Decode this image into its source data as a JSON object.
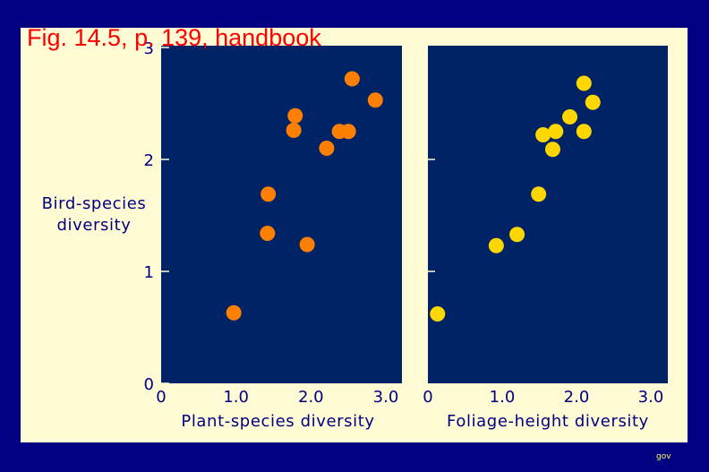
{
  "figure": {
    "title": "Fig. 14.5, p. 139, handbook",
    "footer": "gov",
    "ylabel_lines": [
      "Bird-species",
      "diversity"
    ]
  },
  "colors": {
    "frame": "#000080",
    "panel": "#fffbd5",
    "plot_bg": "#002366",
    "title": "#ff0000",
    "text": "#000080",
    "series_left": "#ff8000",
    "series_right": "#ffd700"
  },
  "chart_data": [
    {
      "type": "scatter",
      "title": "",
      "xlabel": "Plant-species diversity",
      "ylabel": "Bird-species diversity",
      "xlim": [
        0,
        3.2
      ],
      "ylim": [
        0,
        3
      ],
      "xticks": [
        0,
        1.0,
        2.0,
        3.0
      ],
      "xtick_labels": [
        "0",
        "1.0",
        "2.0",
        "3.0"
      ],
      "yticks": [
        0,
        1,
        2,
        3
      ],
      "ytick_labels": [
        "0",
        "1",
        "2",
        "3"
      ],
      "grid": false,
      "series": [
        {
          "color": "#ff8000",
          "points": [
            {
              "x": 0.97,
              "y": 0.63
            },
            {
              "x": 1.42,
              "y": 1.34
            },
            {
              "x": 1.95,
              "y": 1.24
            },
            {
              "x": 1.43,
              "y": 1.69
            },
            {
              "x": 1.77,
              "y": 2.26
            },
            {
              "x": 1.79,
              "y": 2.39
            },
            {
              "x": 2.21,
              "y": 2.1
            },
            {
              "x": 2.38,
              "y": 2.25
            },
            {
              "x": 2.5,
              "y": 2.25
            },
            {
              "x": 2.55,
              "y": 2.72
            },
            {
              "x": 2.86,
              "y": 2.53
            }
          ]
        }
      ]
    },
    {
      "type": "scatter",
      "title": "",
      "xlabel": "Foliage-height diversity",
      "xlim": [
        0,
        3.2
      ],
      "ylim": [
        0,
        3
      ],
      "xticks": [
        0,
        1.0,
        2.0,
        3.0
      ],
      "xtick_labels": [
        "0",
        "1.0",
        "2.0",
        "3.0"
      ],
      "yticks": [
        1,
        2
      ],
      "grid": false,
      "series": [
        {
          "color": "#ffd700",
          "points": [
            {
              "x": 0.13,
              "y": 0.62
            },
            {
              "x": 0.92,
              "y": 1.23
            },
            {
              "x": 1.2,
              "y": 1.33
            },
            {
              "x": 1.49,
              "y": 1.69
            },
            {
              "x": 1.55,
              "y": 2.22
            },
            {
              "x": 1.68,
              "y": 2.09
            },
            {
              "x": 1.72,
              "y": 2.25
            },
            {
              "x": 1.91,
              "y": 2.38
            },
            {
              "x": 2.1,
              "y": 2.25
            },
            {
              "x": 2.1,
              "y": 2.68
            },
            {
              "x": 2.22,
              "y": 2.51
            }
          ]
        }
      ]
    }
  ]
}
